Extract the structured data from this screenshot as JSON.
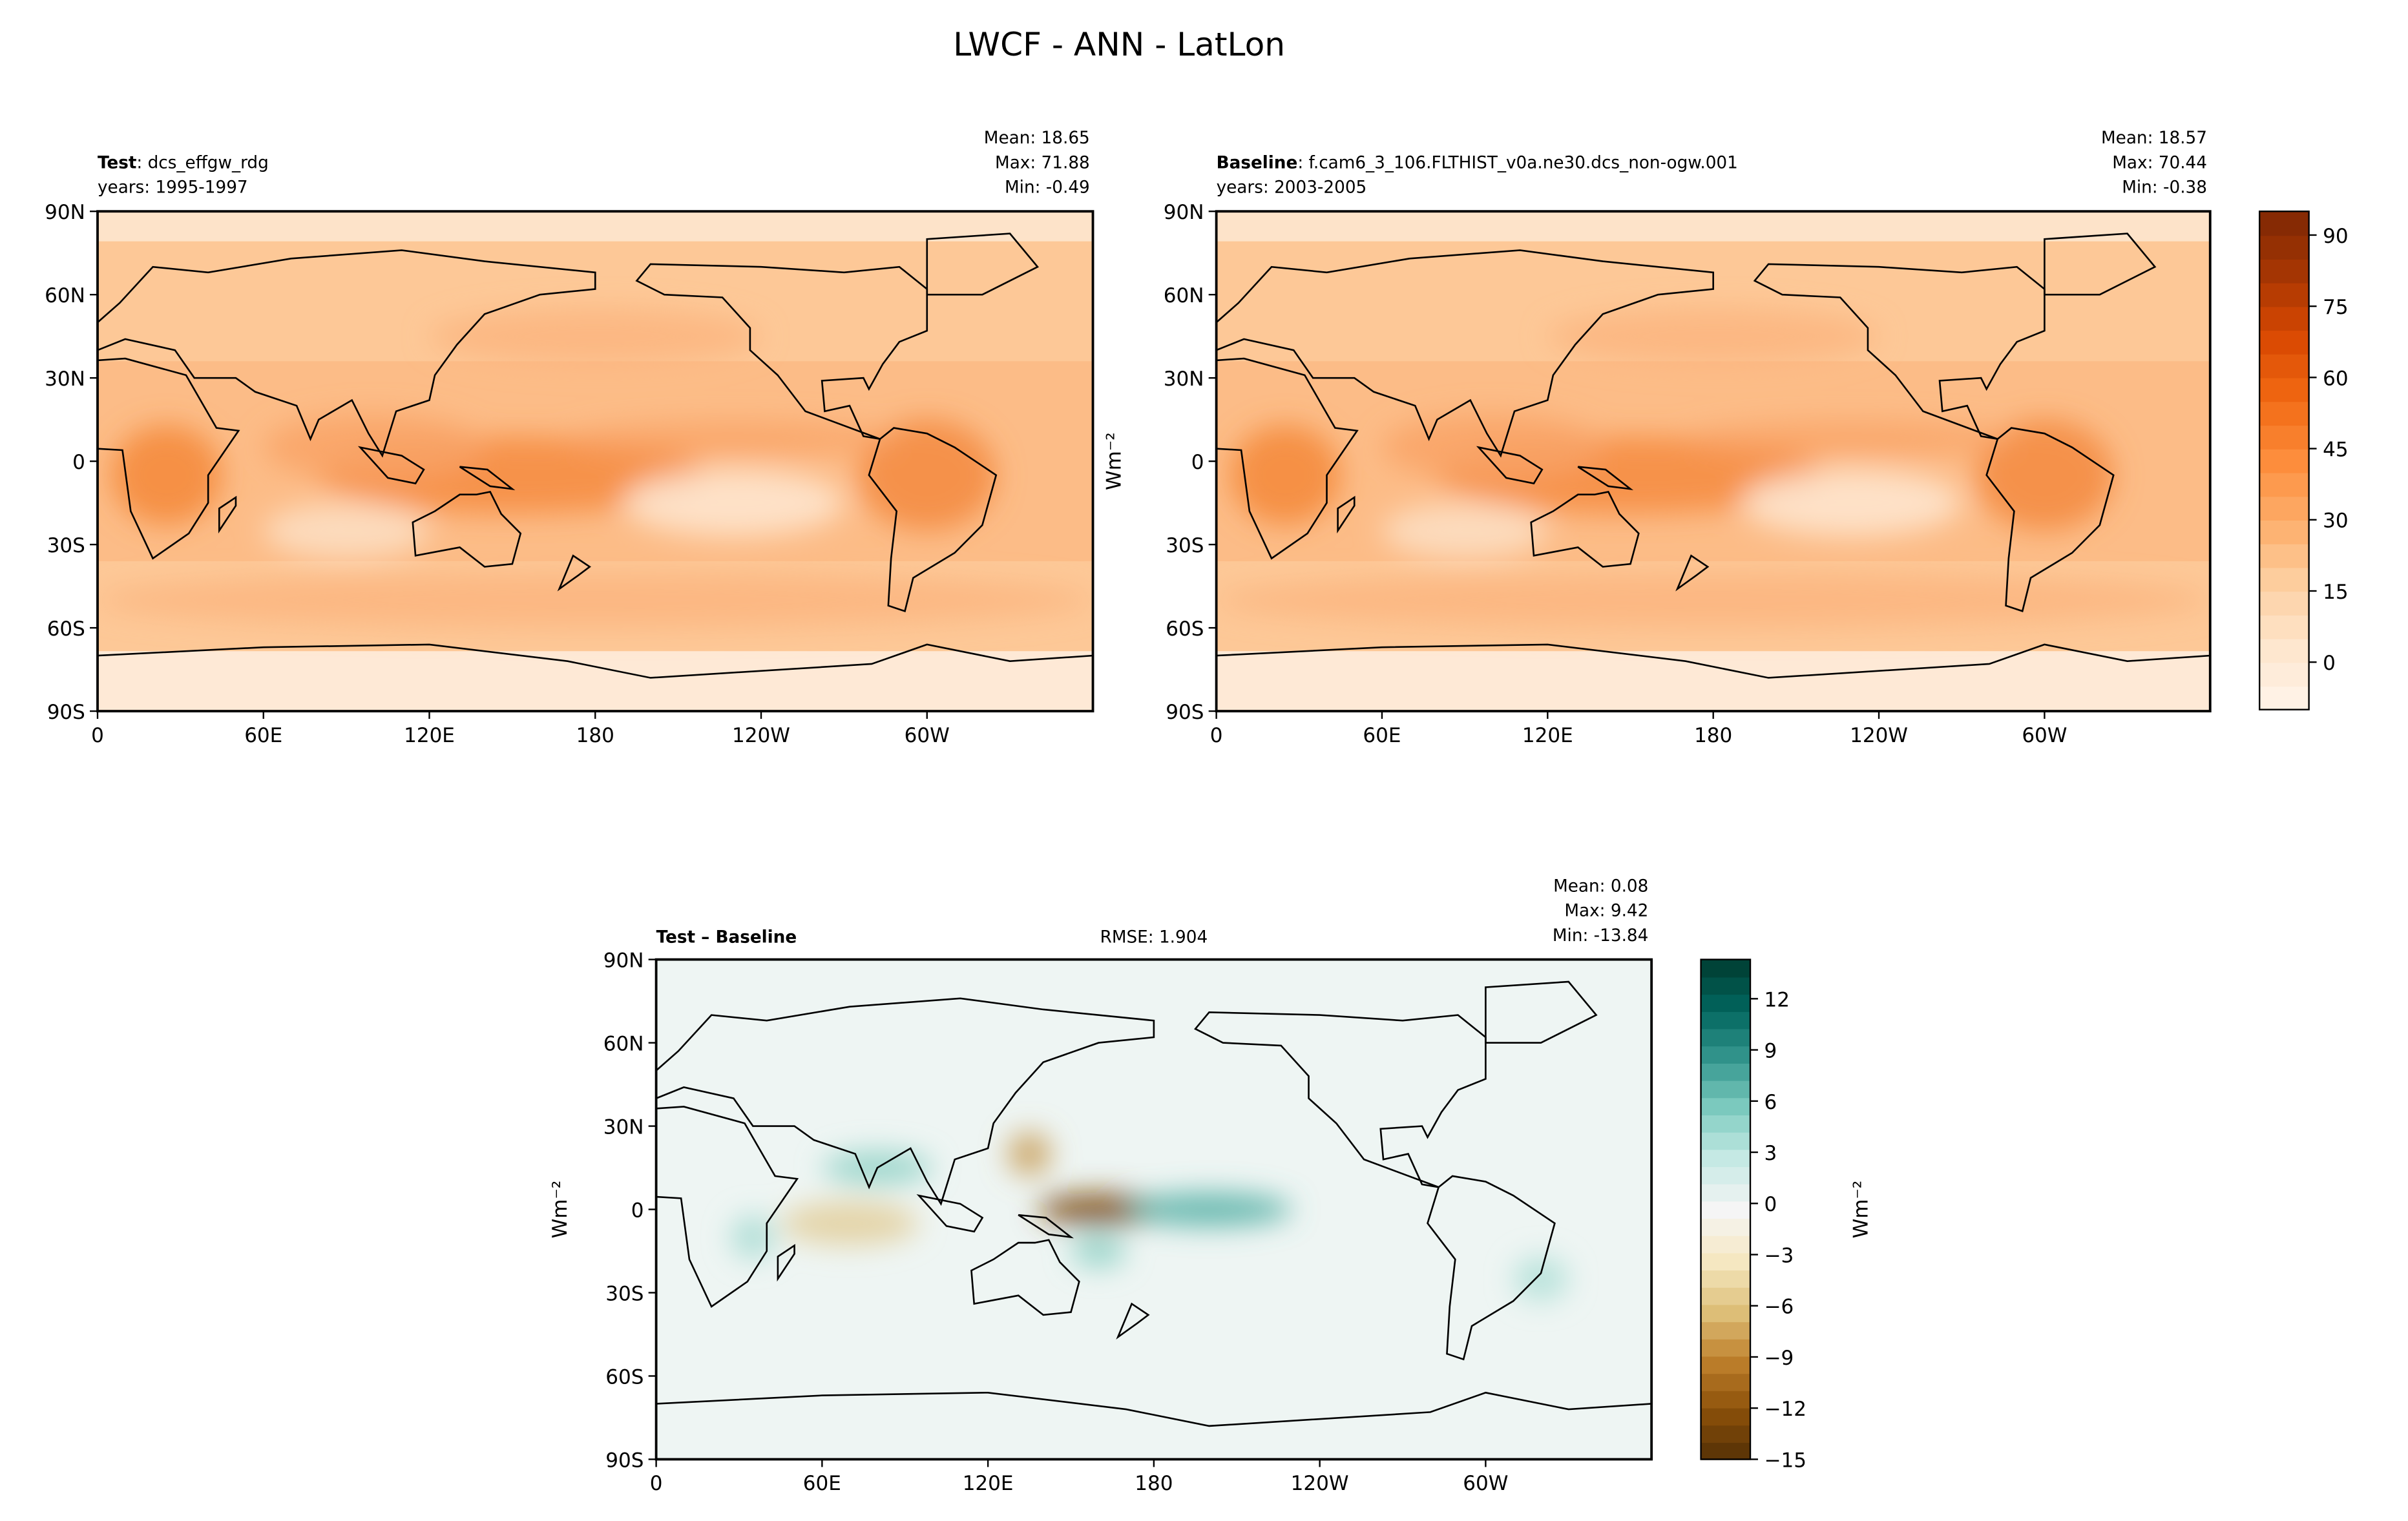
{
  "title": "LWCF - ANN - LatLon",
  "lon_ticks": [
    "0",
    "60E",
    "120E",
    "180",
    "120W",
    "60W"
  ],
  "lat_ticks": [
    "90N",
    "60N",
    "30N",
    "0",
    "30S",
    "60S",
    "90S"
  ],
  "chart_data": [
    {
      "type": "heatmap",
      "panel": "test",
      "label_bold": "Test",
      "label_rest": ": dcs_effgw_rdg",
      "years": "years: 1995-1997",
      "stats": [
        "Mean: 18.65",
        "Max: 71.88",
        "Min: -0.49"
      ],
      "xlim": [
        0,
        360
      ],
      "ylim": [
        -90,
        90
      ]
    },
    {
      "type": "heatmap",
      "panel": "baseline",
      "label_bold": "Baseline",
      "label_rest": ": f.cam6_3_106.FLTHIST_v0a.ne30.dcs_non-ogw.001",
      "years": "years: 2003-2005",
      "stats": [
        "Mean: 18.57",
        "Max: 70.44",
        "Min: -0.38"
      ],
      "xlim": [
        0,
        360
      ],
      "ylim": [
        -90,
        90
      ]
    },
    {
      "type": "heatmap",
      "panel": "diff",
      "label_bold": "Test – Baseline",
      "rmse": "RMSE: 1.904",
      "stats": [
        "Mean:  0.08",
        "Max:  9.42",
        "Min: -13.84"
      ],
      "xlim": [
        0,
        360
      ],
      "ylim": [
        -90,
        90
      ]
    }
  ],
  "colorbars": {
    "main": {
      "label": "Wm⁻²",
      "range": [
        -10,
        95
      ],
      "ticks": [
        0,
        15,
        30,
        45,
        60,
        75,
        90
      ],
      "tick_labels": [
        "0",
        "15",
        "30",
        "45",
        "60",
        "75",
        "90"
      ],
      "colors": [
        "#fff5eb",
        "#fee6ce",
        "#fdd0a2",
        "#fdae6b",
        "#fd8d3c",
        "#f16913",
        "#d94801",
        "#a63603",
        "#7f2704"
      ]
    },
    "diff": {
      "label": "Wm⁻²",
      "range": [
        -15,
        14.3
      ],
      "ticks": [
        -15,
        -12,
        -9,
        -6,
        -3,
        0,
        3,
        6,
        9,
        12
      ],
      "tick_labels": [
        "−15",
        "−12",
        "−9",
        "−6",
        "−3",
        "0",
        "3",
        "6",
        "9",
        "12"
      ],
      "colors": [
        "#543005",
        "#8c510a",
        "#bf812d",
        "#dfc27d",
        "#f6e8c3",
        "#f5f5f5",
        "#c7eae5",
        "#80cdc1",
        "#35978f",
        "#01665e",
        "#003c30"
      ]
    }
  }
}
